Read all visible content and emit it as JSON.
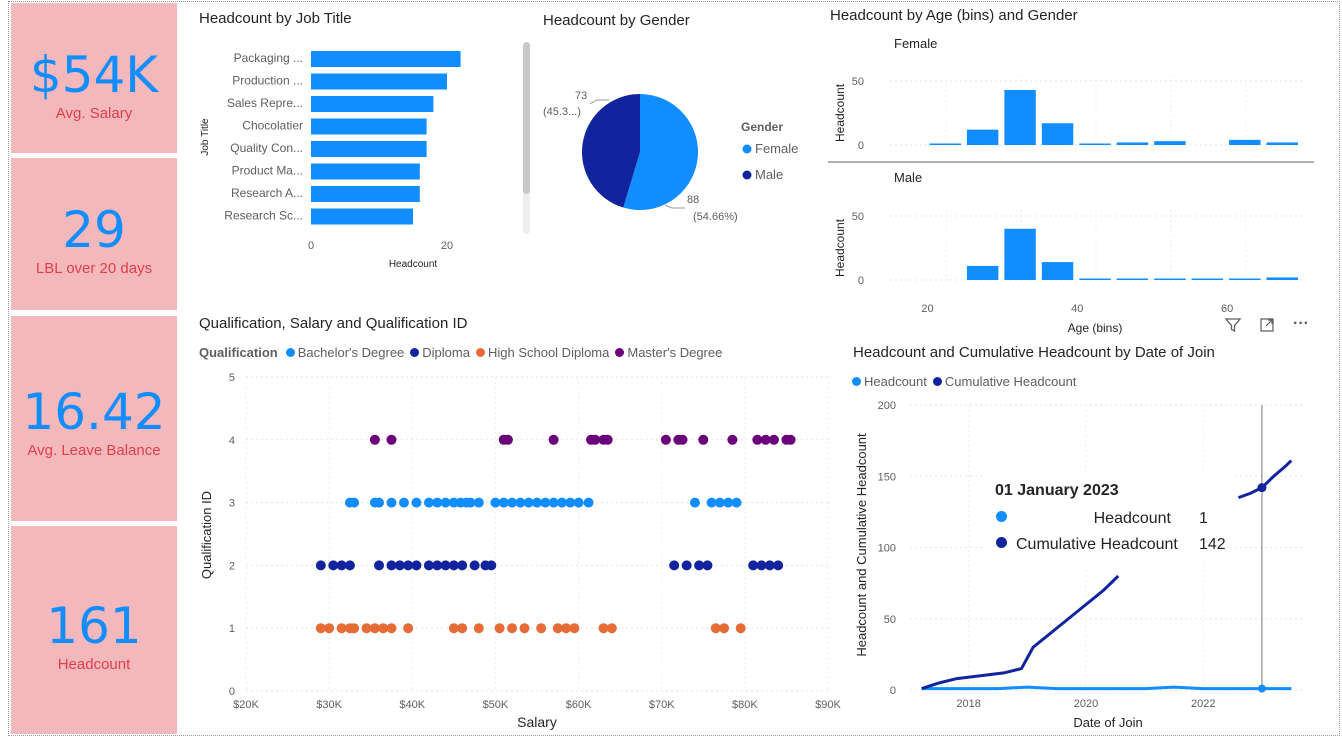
{
  "colors": {
    "primary": "#118dff",
    "dark": "#12239e",
    "orange": "#e66c37",
    "purple": "#6b007b",
    "kpi_bg": "#f2b8bc",
    "kpi_label": "#e0404b"
  },
  "kpis": [
    {
      "value": "$54K",
      "label": "Avg. Salary"
    },
    {
      "value": "29",
      "label": "LBL over 20 days"
    },
    {
      "value": "16.42",
      "label": "Avg. Leave Balance"
    },
    {
      "value": "161",
      "label": "Headcount"
    }
  ],
  "chart_data": [
    {
      "type": "bar",
      "title": "Headcount by Job Title",
      "xlabel": "Headcount",
      "ylabel": "Job Title",
      "categories": [
        "Packaging ...",
        "Production ...",
        "Sales Repre...",
        "Chocolatier",
        "Quality Con...",
        "Product Ma...",
        "Research A...",
        "Research Sc..."
      ],
      "values": [
        22,
        20,
        18,
        17,
        17,
        16,
        16,
        15
      ],
      "xticks": [
        "0",
        "20"
      ],
      "xlim": [
        0,
        22.5
      ]
    },
    {
      "type": "pie",
      "title": "Headcount by Gender",
      "legend_title": "Gender",
      "slices": [
        {
          "name": "Female",
          "value": 88,
          "label": "88",
          "pct": "(54.66%)"
        },
        {
          "name": "Male",
          "value": 73,
          "label": "73",
          "pct": "(45.3...)"
        }
      ]
    },
    {
      "type": "bar",
      "title": "Headcount by Age (bins) and Gender",
      "xlabel": "Age (bins)",
      "ylabel": "Headcount",
      "xticks": [
        "20",
        "40",
        "60"
      ],
      "yticks": [
        "0",
        "50"
      ],
      "panels": [
        {
          "name": "Female",
          "bins": [
            20,
            25,
            30,
            35,
            40,
            45,
            50,
            55,
            60,
            65
          ],
          "values": [
            1,
            12,
            43,
            17,
            1,
            2,
            3,
            0,
            4,
            2
          ]
        },
        {
          "name": "Male",
          "bins": [
            20,
            25,
            30,
            35,
            40,
            45,
            50,
            55,
            60,
            65
          ],
          "values": [
            0,
            11,
            40,
            14,
            1,
            1,
            1,
            1,
            1,
            2
          ]
        }
      ]
    },
    {
      "type": "scatter",
      "title": "Qualification, Salary and Qualification ID",
      "xlabel": "Salary",
      "ylabel": "Qualification ID",
      "legend_title": "Qualification",
      "xticks": [
        "$20K",
        "$30K",
        "$40K",
        "$50K",
        "$60K",
        "$70K",
        "$80K",
        "$90K"
      ],
      "yticks": [
        "0",
        "1",
        "2",
        "3",
        "4",
        "5"
      ],
      "xlim": [
        20000,
        90000
      ],
      "ylim": [
        0,
        5
      ],
      "series": [
        {
          "name": "Bachelor's Degree",
          "y": 3,
          "x": [
            32500,
            33000,
            35500,
            36000,
            37500,
            39000,
            40500,
            42000,
            43000,
            44000,
            45000,
            45800,
            46500,
            47000,
            48000,
            50000,
            51000,
            52000,
            53000,
            54000,
            55000,
            56000,
            57000,
            58000,
            59000,
            60000,
            61200,
            74000,
            76000,
            77000,
            78000,
            79000
          ]
        },
        {
          "name": "Diploma",
          "y": 2,
          "x": [
            29000,
            30500,
            31500,
            32500,
            36000,
            37500,
            38500,
            39500,
            40500,
            42000,
            43000,
            44000,
            45000,
            46000,
            47500,
            48800,
            49500,
            71500,
            73000,
            74500,
            75500,
            81000,
            82000,
            83000,
            84000
          ]
        },
        {
          "name": "High School Diploma",
          "y": 1,
          "x": [
            29000,
            30000,
            31500,
            32500,
            33000,
            34500,
            35500,
            36500,
            37500,
            39500,
            45000,
            46000,
            48000,
            50500,
            52000,
            53500,
            55500,
            57500,
            58500,
            59500,
            63000,
            64000,
            76500,
            77500,
            79500
          ]
        },
        {
          "name": "Master's Degree",
          "y": 4,
          "x": [
            35500,
            37500,
            51000,
            51500,
            57000,
            61500,
            62000,
            63000,
            63500,
            70500,
            72000,
            72500,
            75000,
            78500,
            81500,
            82500,
            83500,
            85000,
            85500
          ]
        }
      ]
    },
    {
      "type": "line",
      "title": "Headcount and Cumulative Headcount by Date of Join",
      "xlabel": "Date of Join",
      "ylabel": "Headcount and Cumulative Headcount",
      "xticks": [
        "2018",
        "2020",
        "2022"
      ],
      "yticks": [
        "0",
        "50",
        "100",
        "150",
        "200"
      ],
      "ylim": [
        0,
        200
      ],
      "series": [
        {
          "name": "Headcount",
          "x": [
            2017.2,
            2017.5,
            2018.0,
            2018.5,
            2019.0,
            2019.5,
            2020.0,
            2020.5,
            2021.0,
            2021.5,
            2022.0,
            2022.5,
            2023.0,
            2023.5
          ],
          "values": [
            1,
            1,
            1,
            1,
            2,
            1,
            1,
            1,
            1,
            2,
            1,
            1,
            1,
            1
          ]
        },
        {
          "name": "Cumulative Headcount",
          "x": [
            2017.2,
            2017.5,
            2017.8,
            2018.2,
            2018.6,
            2018.9,
            2019.1,
            2019.4,
            2019.7,
            2020.0,
            2020.3,
            2020.55
          ],
          "values": [
            1,
            5,
            8,
            10,
            12,
            15,
            30,
            40,
            50,
            60,
            70,
            80
          ]
        },
        {
          "name": "Cumulative Headcount",
          "x": [
            2022.6,
            2022.8,
            2023.0,
            2023.2,
            2023.4,
            2023.5
          ],
          "values": [
            135,
            138,
            142,
            150,
            157,
            161
          ]
        }
      ],
      "tooltip": {
        "date": "01 January 2023",
        "rows": [
          {
            "label": "Headcount",
            "value": "1"
          },
          {
            "label": "Cumulative Headcount",
            "value": "142"
          }
        ]
      }
    }
  ],
  "visual_header": {
    "filter_icon": "filter-icon",
    "focus_icon": "focus-mode-icon",
    "more_icon": "more-options-icon",
    "more_glyph": "···"
  }
}
